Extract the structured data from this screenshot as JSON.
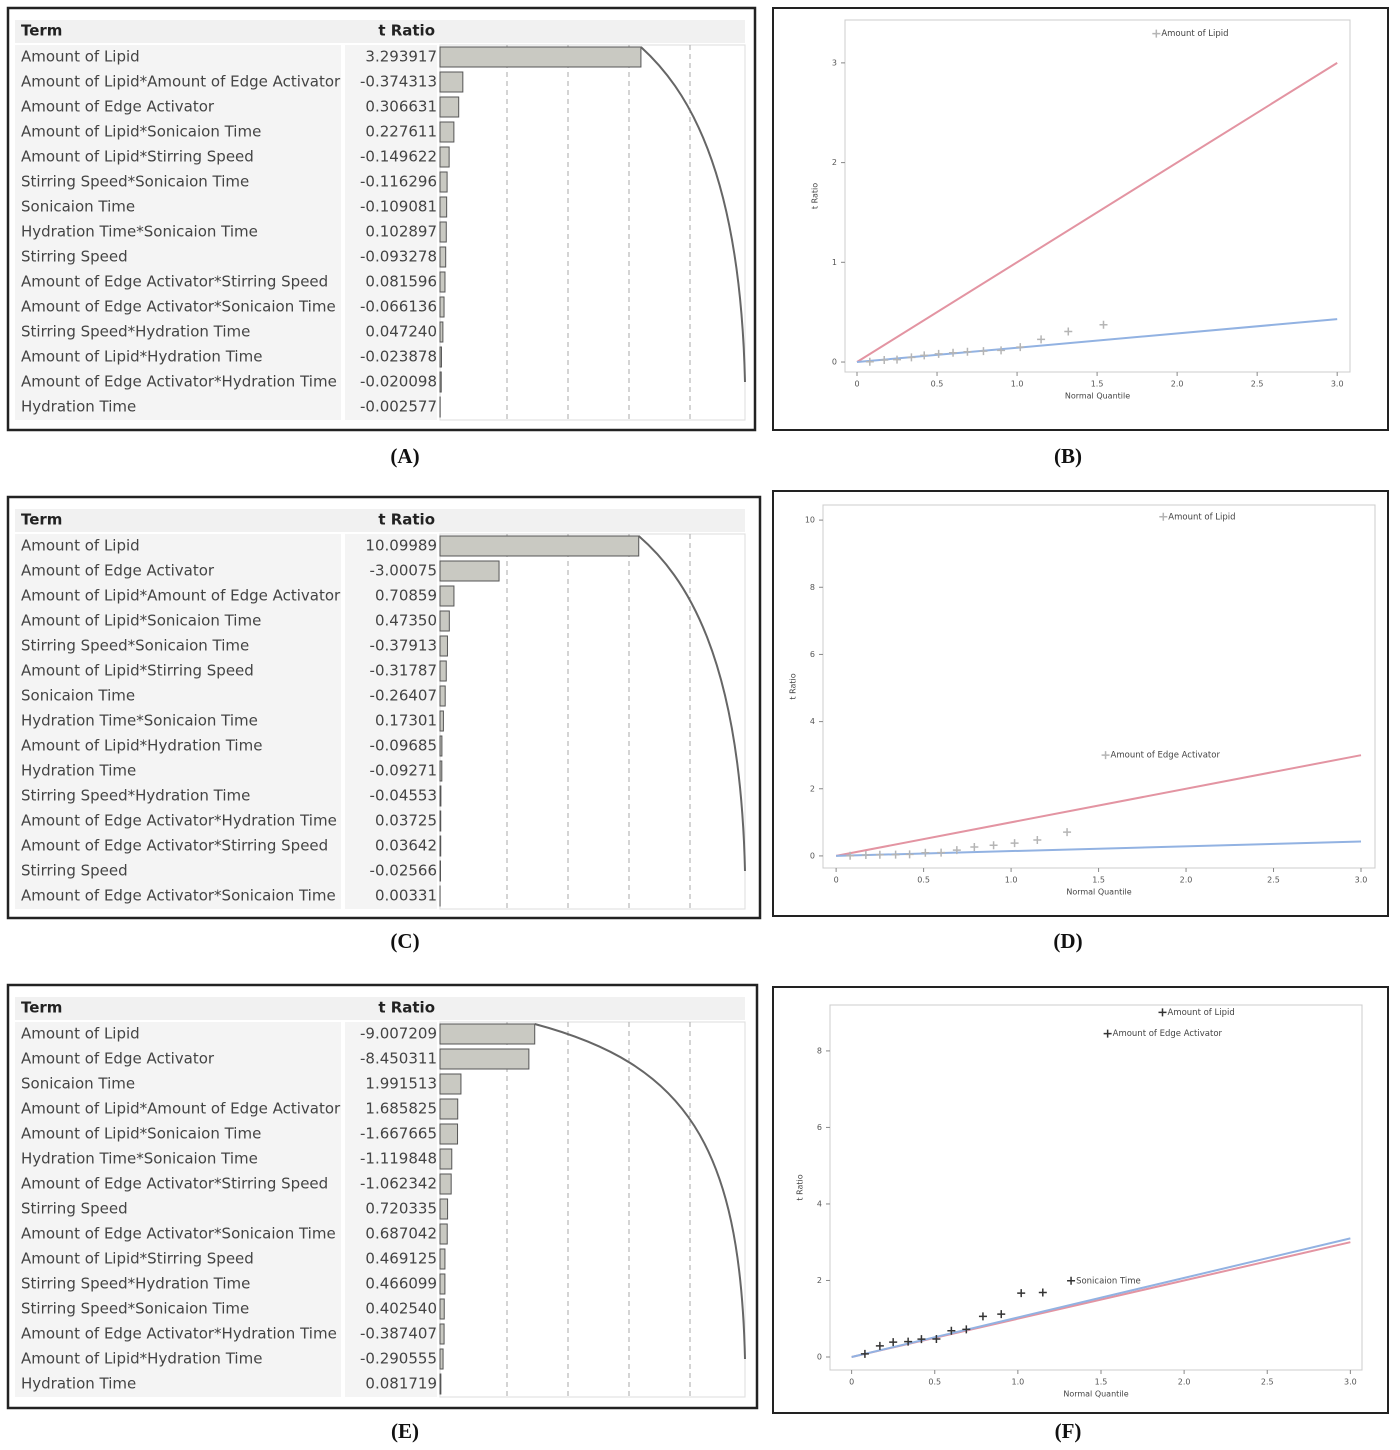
{
  "chart_data": [
    {
      "type": "bar",
      "orientation": "horizontal",
      "caption": "(A)",
      "columns": [
        "Term",
        "t Ratio"
      ],
      "categories": [
        "Amount of Lipid",
        "Amount of Lipid*Amount of Edge Activator",
        "Amount of Edge Activator",
        "Amount of Lipid*Sonicaion Time",
        "Amount of Lipid*Stirring Speed",
        "Stirring Speed*Sonicaion Time",
        "Sonicaion Time",
        "Hydration Time*Sonicaion Time",
        "Stirring Speed",
        "Amount of Edge Activator*Stirring Speed",
        "Amount of Edge Activator*Sonicaion Time",
        "Stirring Speed*Hydration Time",
        "Amount of Lipid*Hydration Time",
        "Amount of Edge Activator*Hydration Time",
        "Hydration Time"
      ],
      "values": [
        3.293917,
        -0.374313,
        0.306631,
        0.227611,
        -0.149622,
        -0.116296,
        -0.109081,
        0.102897,
        -0.093278,
        0.081596,
        -0.066136,
        0.04724,
        -0.023878,
        -0.020098,
        -0.002577
      ],
      "value_labels": [
        "3.293917",
        "-0.374313",
        "0.306631",
        "0.227611",
        "-0.149622",
        "-0.116296",
        "-0.109081",
        "0.102897",
        "-0.093278",
        "0.081596",
        "-0.066136",
        "0.047240",
        "-0.023878",
        "-0.020098",
        "-0.002577"
      ],
      "xlim": [
        0,
        5
      ],
      "color": "#c9c9c2"
    },
    {
      "type": "scatter",
      "caption": "(B)",
      "xlabel": "Normal Quantile",
      "ylabel": "t Ratio",
      "x": [
        0.08,
        0.17,
        0.25,
        0.34,
        0.42,
        0.51,
        0.6,
        0.69,
        0.79,
        0.9,
        1.02,
        1.15,
        1.32,
        1.54,
        1.87
      ],
      "values": [
        0.002577,
        0.020098,
        0.023878,
        0.04724,
        0.066136,
        0.081596,
        0.093278,
        0.102897,
        0.109081,
        0.116296,
        0.149622,
        0.227611,
        0.306631,
        0.374313,
        3.293917
      ],
      "point_labels": [
        null,
        null,
        null,
        null,
        null,
        null,
        null,
        null,
        null,
        null,
        null,
        null,
        null,
        null,
        "Amount of Lipid"
      ],
      "color": "#b5b5b5",
      "lines": [
        {
          "color": "#e394a2",
          "x": [
            0,
            3
          ],
          "y": [
            0,
            3
          ]
        },
        {
          "color": "#92b2e2",
          "x": [
            0,
            3
          ],
          "y": [
            0,
            0.43
          ]
        }
      ],
      "xlim": [
        -0.075,
        3.08
      ],
      "ylim": [
        -0.1,
        3.43
      ],
      "xticks": [
        0,
        0.5,
        {
          "value": 1,
          "label": "1.0"
        },
        1.5,
        {
          "value": 2,
          "label": "2.0"
        },
        2.5,
        {
          "value": 3,
          "label": "3.0"
        }
      ],
      "yticks": [
        0,
        1,
        2,
        3
      ]
    },
    {
      "type": "bar",
      "orientation": "horizontal",
      "caption": "(C)",
      "columns": [
        "Term",
        "t Ratio"
      ],
      "categories": [
        "Amount of Lipid",
        "Amount of Edge Activator",
        "Amount of Lipid*Amount of Edge Activator",
        "Amount of Lipid*Sonicaion Time",
        "Stirring Speed*Sonicaion Time",
        "Amount of Lipid*Stirring Speed",
        "Sonicaion Time",
        "Hydration Time*Sonicaion Time",
        "Amount of Lipid*Hydration Time",
        "Hydration Time",
        "Stirring Speed*Hydration Time",
        "Amount of Edge Activator*Hydration Time",
        "Amount of Edge Activator*Stirring Speed",
        "Stirring Speed",
        "Amount of Edge Activator*Sonicaion Time"
      ],
      "values": [
        10.09989,
        -3.00075,
        0.70859,
        0.4735,
        -0.37913,
        -0.31787,
        -0.26407,
        0.17301,
        -0.09685,
        -0.09271,
        -0.04553,
        0.03725,
        0.03642,
        -0.02566,
        0.00331
      ],
      "value_labels": [
        "10.09989",
        "-3.00075",
        "0.70859",
        "0.47350",
        "-0.37913",
        "-0.31787",
        "-0.26407",
        "0.17301",
        "-0.09685",
        "-0.09271",
        "-0.04553",
        "0.03725",
        "0.03642",
        "-0.02566",
        "0.00331"
      ],
      "xlim": [
        0,
        15.5
      ],
      "color": "#c9c9c2"
    },
    {
      "type": "scatter",
      "caption": "(D)",
      "xlabel": "Normal Quantile",
      "ylabel": "t Ratio",
      "x": [
        0.08,
        0.17,
        0.25,
        0.34,
        0.42,
        0.51,
        0.6,
        0.69,
        0.79,
        0.9,
        1.02,
        1.15,
        1.32,
        1.54,
        1.87
      ],
      "values": [
        0.00331,
        0.02566,
        0.03642,
        0.03725,
        0.04553,
        0.09271,
        0.09685,
        0.17301,
        0.26407,
        0.31787,
        0.37913,
        0.4735,
        0.70859,
        3.00075,
        10.09989
      ],
      "point_labels": [
        null,
        null,
        null,
        null,
        null,
        null,
        null,
        null,
        null,
        null,
        null,
        null,
        null,
        "Amount of Edge Activator",
        "Amount of Lipid"
      ],
      "color": "#b5b5b5",
      "lines": [
        {
          "color": "#e394a2",
          "x": [
            0,
            3
          ],
          "y": [
            0,
            3
          ]
        },
        {
          "color": "#92b2e2",
          "x": [
            0,
            3
          ],
          "y": [
            0,
            0.43
          ]
        }
      ],
      "xlim": [
        -0.075,
        3.08
      ],
      "ylim": [
        -0.36,
        10.45
      ],
      "xticks": [
        0,
        0.5,
        {
          "value": 1,
          "label": "1.0"
        },
        1.5,
        {
          "value": 2,
          "label": "2.0"
        },
        2.5,
        {
          "value": 3,
          "label": "3.0"
        }
      ],
      "yticks": [
        0,
        2,
        4,
        6,
        8,
        10
      ]
    },
    {
      "type": "bar",
      "orientation": "horizontal",
      "caption": "(E)",
      "columns": [
        "Term",
        "t Ratio"
      ],
      "categories": [
        "Amount of Lipid",
        "Amount of Edge Activator",
        "Sonicaion Time",
        "Amount of Lipid*Amount of Edge Activator",
        "Amount of Lipid*Sonicaion Time",
        "Hydration Time*Sonicaion Time",
        "Amount of Edge Activator*Stirring Speed",
        "Stirring Speed",
        "Amount of Edge Activator*Sonicaion Time",
        "Amount of Lipid*Stirring Speed",
        "Stirring Speed*Hydration Time",
        "Stirring Speed*Sonicaion Time",
        "Amount of Edge Activator*Hydration Time",
        "Amount of Lipid*Hydration Time",
        "Hydration Time"
      ],
      "values": [
        -9.007209,
        -8.450311,
        1.991513,
        1.685825,
        -1.667665,
        -1.119848,
        -1.062342,
        0.720335,
        0.687042,
        0.469125,
        0.466099,
        0.40254,
        -0.387407,
        -0.290555,
        0.081719
      ],
      "value_labels": [
        "-9.007209",
        "-8.450311",
        "1.991513",
        "1.685825",
        "-1.667665",
        "-1.119848",
        "-1.062342",
        "0.720335",
        "0.687042",
        "0.469125",
        "0.466099",
        "0.402540",
        "-0.387407",
        "-0.290555",
        "0.081719"
      ],
      "xlim": [
        0,
        29
      ],
      "color": "#c9c9c2"
    },
    {
      "type": "scatter",
      "caption": "(F)",
      "xlabel": "Normal Quantile",
      "ylabel": "t Ratio",
      "x": [
        0.08,
        0.17,
        0.25,
        0.34,
        0.42,
        0.51,
        0.6,
        0.69,
        0.79,
        0.9,
        1.02,
        1.15,
        1.32,
        1.54,
        1.87
      ],
      "values": [
        0.081719,
        0.290555,
        0.387407,
        0.40254,
        0.466099,
        0.469125,
        0.687042,
        0.720335,
        1.062342,
        1.119848,
        1.667665,
        1.685825,
        1.991513,
        8.450311,
        9.007209
      ],
      "point_labels": [
        null,
        null,
        null,
        null,
        null,
        null,
        null,
        null,
        null,
        null,
        null,
        null,
        "Sonicaion Time",
        "Amount of Edge Activator",
        "Amount of Lipid"
      ],
      "color": "#333333",
      "lines": [
        {
          "color": "#e394a2",
          "x": [
            0,
            3
          ],
          "y": [
            0,
            3
          ]
        },
        {
          "color": "#92b2e2",
          "x": [
            0,
            3
          ],
          "y": [
            0,
            3.1
          ]
        }
      ],
      "xlim": [
        -0.13,
        3.07
      ],
      "ylim": [
        -0.34,
        9.2
      ],
      "xticks": [
        0,
        0.5,
        {
          "value": 1,
          "label": "1.0"
        },
        1.5,
        {
          "value": 2,
          "label": "2.0"
        },
        2.5,
        {
          "value": 3,
          "label": "3.0"
        }
      ],
      "yticks": [
        0,
        2,
        4,
        6,
        8
      ]
    }
  ]
}
